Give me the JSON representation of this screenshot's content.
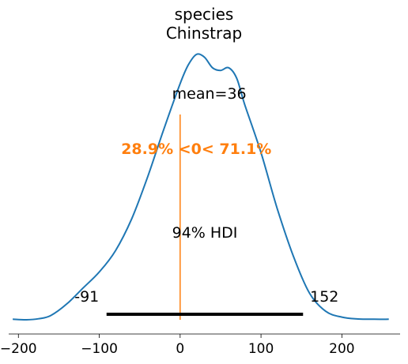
{
  "chart_data": {
    "type": "line",
    "title_lines": [
      "species",
      "Chinstrap"
    ],
    "xlabel": "",
    "ylabel": "",
    "xlim": [
      -212,
      272
    ],
    "ylim": [
      0,
      1
    ],
    "grid": false,
    "xticks": [
      -200,
      -100,
      0,
      100,
      200
    ],
    "xtick_labels": [
      "−200",
      "−100",
      "0",
      "100",
      "200"
    ],
    "density": {
      "x": [
        -207,
        -190,
        -175,
        -160,
        -140,
        -120,
        -100,
        -80,
        -60,
        -40,
        -20,
        0,
        10,
        20,
        30,
        40,
        50,
        60,
        70,
        80,
        100,
        120,
        140,
        160,
        180,
        200,
        220,
        240,
        258
      ],
      "y": [
        0.002,
        0.0,
        0.004,
        0.016,
        0.06,
        0.12,
        0.18,
        0.26,
        0.38,
        0.54,
        0.72,
        0.89,
        0.96,
        1.0,
        0.99,
        0.95,
        0.94,
        0.95,
        0.91,
        0.81,
        0.63,
        0.42,
        0.24,
        0.1,
        0.032,
        0.01,
        0.003,
        0.002,
        0.002
      ],
      "color": "#1f77b4"
    },
    "mean": {
      "value": 36,
      "label": "mean=36"
    },
    "reference": {
      "value": 0,
      "label": "28.9% <0< 71.1%",
      "color": "#ff7f0e"
    },
    "hdi": {
      "low": -91,
      "high": 152,
      "low_label": "-91",
      "high_label": "152",
      "label": "94% HDI",
      "color": "#000000"
    }
  }
}
